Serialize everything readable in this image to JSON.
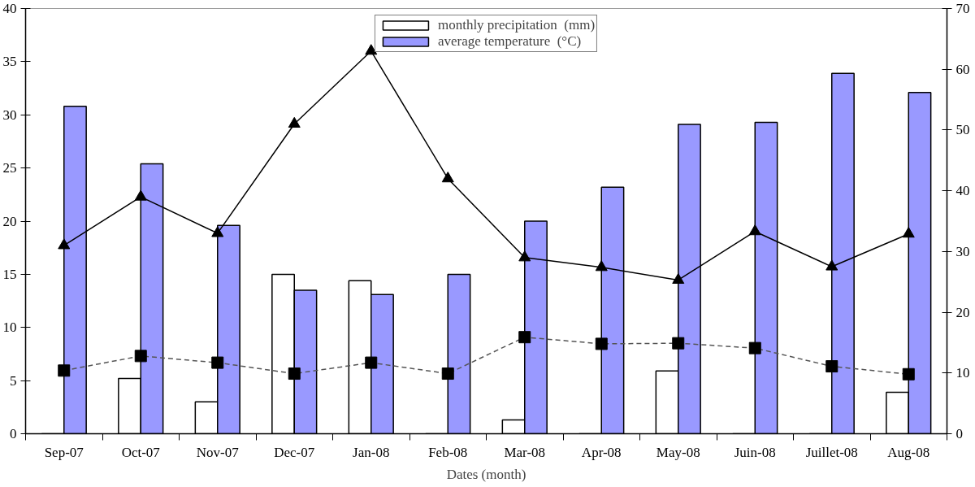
{
  "chart_data": {
    "type": "bar",
    "xlabel": "Dates (month)",
    "categories": [
      "Sep-07",
      "Oct-07",
      "Nov-07",
      "Dec-07",
      "Jan-08",
      "Feb-08",
      "Mar-08",
      "Apr-08",
      "May-08",
      "Juin-08",
      "Juillet-08",
      "Aug-08"
    ],
    "series": [
      {
        "name": "monthly precipitation  (mm)",
        "color": "#ffffff",
        "values": [
          0,
          5.2,
          3.0,
          15.0,
          14.4,
          0,
          1.3,
          0,
          5.9,
          0,
          0,
          3.9
        ]
      },
      {
        "name": "average temperature  (°C)",
        "color": "#9999ff",
        "values": [
          30.8,
          25.4,
          19.6,
          13.5,
          13.1,
          15.0,
          20.0,
          23.2,
          29.1,
          29.3,
          33.9,
          32.1
        ]
      },
      {
        "type": "line",
        "axis": "y2",
        "color": "#000000",
        "marker": "triangle",
        "line_style": "solid",
        "values": [
          31,
          39,
          33,
          51,
          63,
          42,
          29,
          27.4,
          25.3,
          33.3,
          27.5,
          32.9
        ]
      },
      {
        "type": "line",
        "axis": "y2",
        "color": "#000000",
        "marker": "square",
        "line_style": "dashed",
        "values": [
          10.4,
          12.8,
          11.7,
          9.9,
          11.7,
          9.9,
          15.9,
          14.8,
          14.9,
          14.1,
          11.1,
          9.8
        ]
      }
    ],
    "ylim": [
      0,
      40
    ],
    "yticks": [
      0,
      5,
      10,
      15,
      20,
      25,
      30,
      35,
      40
    ],
    "y2lim": [
      0,
      70
    ],
    "y2ticks": [
      0,
      10,
      20,
      30,
      40,
      50,
      60,
      70
    ],
    "legend": "top",
    "grid": false
  }
}
